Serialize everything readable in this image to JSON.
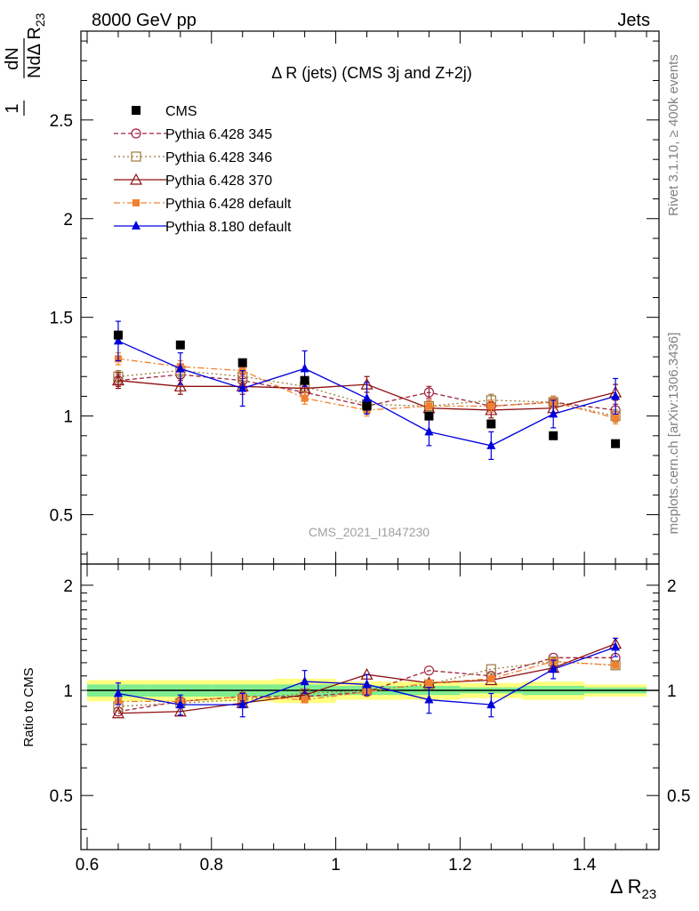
{
  "header": {
    "left": "8000 GeV pp",
    "right": "Jets",
    "rivet_label": "Rivet 3.1.10, ≥ 400k events",
    "mcplots_label": "mcplots.cern.ch [arXiv:1306.3436]",
    "analysis_id": "CMS_2021_I1847230"
  },
  "chart_data": [
    {
      "type": "scatter",
      "title": "Δ R (jets) (CMS 3j and Z+2j)",
      "ylabel_num": "dN",
      "ylabel_den": "NdΔ R",
      "ylabel_sub": "23",
      "ylabel_one": "1",
      "xlim": [
        0.59,
        1.52
      ],
      "ylim": [
        0.25,
        2.95
      ],
      "yticks": [
        0.5,
        1,
        1.5,
        2,
        2.5
      ],
      "ytick_labels": [
        "0.5",
        "1",
        "1.5",
        "2",
        "2.5"
      ],
      "x": [
        0.65,
        0.75,
        0.85,
        0.95,
        1.05,
        1.15,
        1.25,
        1.35,
        1.45
      ],
      "series": [
        {
          "name": "CMS",
          "color": "#000000",
          "marker": "square",
          "dash": "none",
          "values": [
            1.41,
            1.36,
            1.27,
            1.18,
            1.05,
            1.0,
            0.96,
            0.9,
            0.86
          ]
        },
        {
          "name": "Pythia 6.428 345",
          "color": "#a0243e",
          "marker": "circle-open",
          "dash": "5,3",
          "values": [
            1.18,
            1.21,
            1.18,
            1.12,
            1.05,
            1.12,
            1.05,
            1.07,
            1.03
          ],
          "errors": [
            0.03,
            0.03,
            0.03,
            0.03,
            0.03,
            0.03,
            0.03,
            0.03,
            0.03
          ]
        },
        {
          "name": "Pythia 6.428 346",
          "color": "#9c7a3c",
          "marker": "square-open",
          "dash": "2,3",
          "values": [
            1.2,
            1.23,
            1.2,
            1.15,
            1.06,
            1.05,
            1.08,
            1.07,
            1.0
          ],
          "errors": [
            0.03,
            0.03,
            0.03,
            0.03,
            0.03,
            0.03,
            0.03,
            0.03,
            0.03
          ]
        },
        {
          "name": "Pythia 6.428 370",
          "color": "#8c1010",
          "marker": "triangle-open",
          "dash": "none",
          "values": [
            1.18,
            1.15,
            1.15,
            1.14,
            1.16,
            1.04,
            1.03,
            1.04,
            1.12
          ],
          "errors": [
            0.04,
            0.04,
            0.04,
            0.04,
            0.04,
            0.04,
            0.04,
            0.04,
            0.04
          ]
        },
        {
          "name": "Pythia 6.428 default",
          "color": "#f08030",
          "marker": "square-small",
          "dash": "7,3,2,3",
          "values": [
            1.29,
            1.25,
            1.23,
            1.09,
            1.03,
            1.05,
            1.05,
            1.07,
            0.99
          ],
          "errors": [
            0.03,
            0.03,
            0.03,
            0.03,
            0.03,
            0.03,
            0.03,
            0.03,
            0.03
          ]
        },
        {
          "name": "Pythia 8.180 default",
          "color": "#0000dd",
          "marker": "triangle",
          "dash": "none",
          "values": [
            1.38,
            1.24,
            1.14,
            1.24,
            1.09,
            0.92,
            0.85,
            1.01,
            1.1
          ],
          "errors": [
            0.1,
            0.08,
            0.09,
            0.09,
            0.08,
            0.07,
            0.07,
            0.07,
            0.09
          ]
        }
      ]
    },
    {
      "type": "scatter",
      "ylabel": "Ratio to CMS",
      "xlabel": "Δ R",
      "xlabel_sub": "23",
      "xlim": [
        0.59,
        1.52
      ],
      "ylim": [
        0.35,
        2.3
      ],
      "xticks": [
        0.6,
        0.8,
        1.0,
        1.2,
        1.4
      ],
      "xtick_labels": [
        "0.6",
        "0.8",
        "1",
        "1.2",
        "1.4"
      ],
      "yticks": [
        0.5,
        1,
        2
      ],
      "ytick_labels": [
        "0.5",
        "1",
        "2"
      ],
      "x": [
        0.65,
        0.75,
        0.85,
        0.95,
        1.05,
        1.15,
        1.25,
        1.35,
        1.45
      ],
      "band_inner": [
        0.04,
        0.04,
        0.04,
        0.04,
        0.03,
        0.03,
        0.02,
        0.03,
        0.02
      ],
      "band_outer": [
        0.07,
        0.07,
        0.07,
        0.08,
        0.06,
        0.06,
        0.05,
        0.06,
        0.04
      ],
      "series": [
        {
          "name": "Pythia 6.428 345",
          "color": "#a0243e",
          "marker": "circle-open",
          "dash": "5,3",
          "values": [
            0.87,
            0.93,
            0.96,
            0.96,
            0.99,
            1.14,
            1.1,
            1.24,
            1.24
          ]
        },
        {
          "name": "Pythia 6.428 346",
          "color": "#9c7a3c",
          "marker": "square-open",
          "dash": "2,3",
          "values": [
            0.9,
            0.92,
            0.94,
            0.98,
            1.0,
            1.04,
            1.15,
            1.21,
            1.18
          ]
        },
        {
          "name": "Pythia 6.428 370",
          "color": "#8c1010",
          "marker": "triangle-open",
          "dash": "none",
          "values": [
            0.86,
            0.87,
            0.92,
            0.97,
            1.11,
            1.05,
            1.07,
            1.16,
            1.36
          ]
        },
        {
          "name": "Pythia 6.428 default",
          "color": "#f08030",
          "marker": "square-small",
          "dash": "7,3,2,3",
          "values": [
            0.93,
            0.93,
            0.96,
            0.94,
            0.99,
            1.05,
            1.08,
            1.21,
            1.18
          ]
        },
        {
          "name": "Pythia 8.180 default",
          "color": "#0000dd",
          "marker": "triangle",
          "dash": "none",
          "values": [
            0.98,
            0.91,
            0.91,
            1.06,
            1.04,
            0.94,
            0.91,
            1.15,
            1.33
          ],
          "errors": [
            0.07,
            0.06,
            0.07,
            0.08,
            0.07,
            0.08,
            0.07,
            0.07,
            0.08
          ]
        }
      ]
    }
  ]
}
